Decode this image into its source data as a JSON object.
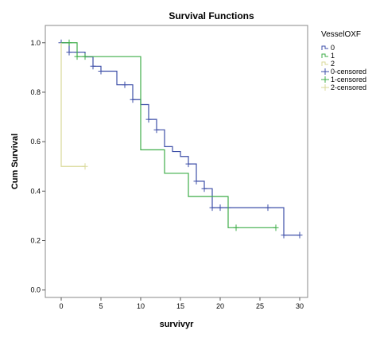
{
  "chart_data": {
    "type": "line",
    "title": "Survival Functions",
    "xlabel": "survivyr",
    "ylabel": "Cum Survival",
    "xlim": [
      -2,
      31
    ],
    "ylim": [
      -0.03,
      1.07
    ],
    "x_ticks": [
      "0",
      "5",
      "10",
      "15",
      "20",
      "25",
      "30"
    ],
    "y_ticks": [
      "0.0",
      "0.2",
      "0.4",
      "0.6",
      "0.8",
      "1.0"
    ],
    "grid": false,
    "legend_position": "right",
    "legend_title": "VesselOXF",
    "legend_entries": [
      "0",
      "1",
      "2",
      "0-censored",
      "1-censored",
      "2-censored"
    ],
    "colors": {
      "0": "#3e4fa8",
      "1": "#3fae49",
      "2": "#d9d99a"
    },
    "series": [
      {
        "name": "0",
        "step_x": [
          0,
          1,
          3,
          4,
          5,
          7,
          9,
          10,
          11,
          12,
          13,
          14,
          15,
          16,
          17,
          18,
          19,
          28,
          30
        ],
        "step_y": [
          1.0,
          0.962,
          0.943,
          0.905,
          0.885,
          0.83,
          0.77,
          0.75,
          0.69,
          0.648,
          0.58,
          0.56,
          0.54,
          0.51,
          0.44,
          0.41,
          0.333,
          0.222,
          0.222
        ],
        "censored_x": [
          0,
          1,
          2,
          4,
          5,
          8,
          9,
          11,
          12,
          16,
          17,
          18,
          19,
          20,
          21,
          26,
          28,
          30
        ],
        "censored_y": [
          1.0,
          0.962,
          0.962,
          0.905,
          0.885,
          0.83,
          0.77,
          0.69,
          0.648,
          0.51,
          0.44,
          0.41,
          0.333,
          0.333,
          0.333,
          0.333,
          0.222,
          0.222
        ]
      },
      {
        "name": "1",
        "step_x": [
          0,
          2,
          10,
          13,
          16,
          21,
          27
        ],
        "step_y": [
          1.0,
          0.944,
          0.567,
          0.472,
          0.378,
          0.252,
          0.252
        ],
        "censored_x": [
          1,
          2,
          3,
          22,
          27
        ],
        "censored_y": [
          1.0,
          0.944,
          0.944,
          0.252,
          0.252
        ]
      },
      {
        "name": "2",
        "step_x": [
          0,
          0,
          3
        ],
        "step_y": [
          1.0,
          0.5,
          0.5
        ],
        "censored_x": [
          3
        ],
        "censored_y": [
          0.5
        ]
      }
    ]
  }
}
